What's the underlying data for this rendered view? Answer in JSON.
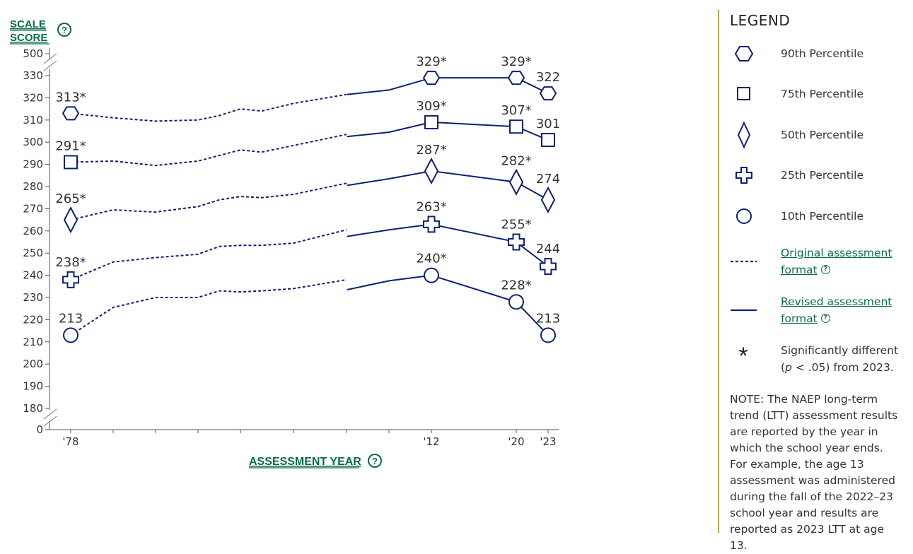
{
  "chart_data": {
    "type": "line",
    "ylabel_line1": "SCALE",
    "ylabel_line2": "SCORE",
    "xlabel": "ASSESSMENT YEAR",
    "y_ticks": [
      500,
      330,
      320,
      310,
      300,
      290,
      280,
      270,
      260,
      250,
      240,
      230,
      220,
      210,
      200,
      190,
      180,
      0
    ],
    "ylim_displayed": [
      175,
      335
    ],
    "axis_breaks": "top and bottom",
    "x_tick_labels": [
      {
        "x": 1978,
        "label": "'78"
      },
      {
        "x": 2012,
        "label": "'12"
      },
      {
        "x": 2020,
        "label": "'20"
      },
      {
        "x": 2023,
        "label": "'23"
      }
    ],
    "x_minor_ticks": [
      1978,
      1982,
      1986,
      1990,
      1994,
      1999,
      2004,
      2008,
      2012,
      2020,
      2023
    ],
    "series": [
      {
        "name": "90th Percentile",
        "symbol": "hexagon",
        "original": [
          [
            1978,
            313
          ],
          [
            1982,
            311
          ],
          [
            1986,
            309.5
          ],
          [
            1990,
            310
          ],
          [
            1992,
            312
          ],
          [
            1994,
            315
          ],
          [
            1996,
            314
          ],
          [
            1999,
            317.5
          ],
          [
            2004,
            321.5
          ]
        ],
        "revised": [
          [
            2004,
            321.5
          ],
          [
            2008,
            323.5
          ],
          [
            2012,
            329
          ],
          [
            2020,
            329
          ],
          [
            2023,
            322
          ]
        ],
        "labeled": [
          {
            "x": 1978,
            "label": "313*"
          },
          {
            "x": 2012,
            "label": "329*"
          },
          {
            "x": 2020,
            "label": "329*"
          },
          {
            "x": 2023,
            "label": "322"
          }
        ]
      },
      {
        "name": "75th Percentile",
        "symbol": "square",
        "original": [
          [
            1978,
            291
          ],
          [
            1982,
            291.5
          ],
          [
            1986,
            289.5
          ],
          [
            1990,
            291.5
          ],
          [
            1994,
            296.5
          ],
          [
            1996,
            295.5
          ],
          [
            1999,
            298.5
          ],
          [
            2004,
            303.5
          ]
        ],
        "revised": [
          [
            2004,
            302.5
          ],
          [
            2008,
            304.5
          ],
          [
            2012,
            309
          ],
          [
            2020,
            307
          ],
          [
            2023,
            301
          ]
        ],
        "labeled": [
          {
            "x": 1978,
            "label": "291*"
          },
          {
            "x": 2012,
            "label": "309*"
          },
          {
            "x": 2020,
            "label": "307*"
          },
          {
            "x": 2023,
            "label": "301"
          }
        ]
      },
      {
        "name": "50th Percentile",
        "symbol": "diamond",
        "original": [
          [
            1978,
            265
          ],
          [
            1982,
            269.5
          ],
          [
            1986,
            268.5
          ],
          [
            1990,
            271
          ],
          [
            1992,
            274
          ],
          [
            1994,
            275.5
          ],
          [
            1996,
            275
          ],
          [
            1999,
            276.5
          ],
          [
            2004,
            281.5
          ]
        ],
        "revised": [
          [
            2004,
            280.5
          ],
          [
            2008,
            283.5
          ],
          [
            2012,
            287
          ],
          [
            2020,
            282
          ],
          [
            2023,
            274
          ]
        ],
        "labeled": [
          {
            "x": 1978,
            "label": "265*"
          },
          {
            "x": 2012,
            "label": "287*"
          },
          {
            "x": 2020,
            "label": "282*"
          },
          {
            "x": 2023,
            "label": "274"
          }
        ]
      },
      {
        "name": "25th Percentile",
        "symbol": "plus",
        "original": [
          [
            1978,
            238
          ],
          [
            1982,
            246
          ],
          [
            1986,
            248
          ],
          [
            1990,
            249.5
          ],
          [
            1992,
            253
          ],
          [
            1994,
            253.5
          ],
          [
            1996,
            253.5
          ],
          [
            1999,
            254.5
          ],
          [
            2004,
            260.5
          ]
        ],
        "revised": [
          [
            2004,
            257.5
          ],
          [
            2008,
            260.5
          ],
          [
            2012,
            263
          ],
          [
            2020,
            255
          ],
          [
            2023,
            244
          ]
        ],
        "labeled": [
          {
            "x": 1978,
            "label": "238*"
          },
          {
            "x": 2012,
            "label": "263*"
          },
          {
            "x": 2020,
            "label": "255*"
          },
          {
            "x": 2023,
            "label": "244"
          }
        ]
      },
      {
        "name": "10th Percentile",
        "symbol": "circle",
        "original": [
          [
            1978,
            213
          ],
          [
            1982,
            225.5
          ],
          [
            1986,
            230
          ],
          [
            1990,
            230
          ],
          [
            1992,
            233
          ],
          [
            1994,
            232.5
          ],
          [
            1996,
            233
          ],
          [
            1999,
            234
          ],
          [
            2004,
            238
          ]
        ],
        "revised": [
          [
            2004,
            233.5
          ],
          [
            2008,
            237.5
          ],
          [
            2012,
            240
          ],
          [
            2020,
            228
          ],
          [
            2023,
            213
          ]
        ],
        "labeled": [
          {
            "x": 1978,
            "label": "213"
          },
          {
            "x": 2012,
            "label": "240*"
          },
          {
            "x": 2020,
            "label": "228*"
          },
          {
            "x": 2023,
            "label": "213"
          }
        ]
      }
    ]
  },
  "legend": {
    "title": "LEGEND",
    "items": [
      {
        "symbol": "hexagon",
        "label": "90th Percentile"
      },
      {
        "symbol": "square",
        "label": "75th Percentile"
      },
      {
        "symbol": "diamond",
        "label": "50th Percentile"
      },
      {
        "symbol": "plus",
        "label": "25th Percentile"
      },
      {
        "symbol": "circle",
        "label": "10th Percentile"
      }
    ],
    "original_line1": "Original assessment",
    "original_line2": "format",
    "revised_line1": "Revised assessment",
    "revised_line2": "format",
    "asterisk_symbol": "*",
    "sig_line1": "Significantly different",
    "sig_p": "p",
    "sig_rest": " < .05) from 2023.",
    "sig_open_paren": "("
  },
  "note": "NOTE: The NAEP long-term trend (LTT) assessment results are reported by the year in which the school year ends. For example, the age 13 assessment was administered during the fall of the 2022–23 school year and results are reported as 2023 LTT at age 13.",
  "help_glyph": "?",
  "colors": {
    "line": "#0d2170",
    "link": "#0b6a4c",
    "divider": "#c8a24a",
    "axis": "#555555"
  },
  "icons": [
    "question-circle-icon",
    "hexagon-icon",
    "square-icon",
    "diamond-icon",
    "plus-icon",
    "circle-icon",
    "dashed-line-icon",
    "solid-line-icon",
    "asterisk-icon"
  ]
}
